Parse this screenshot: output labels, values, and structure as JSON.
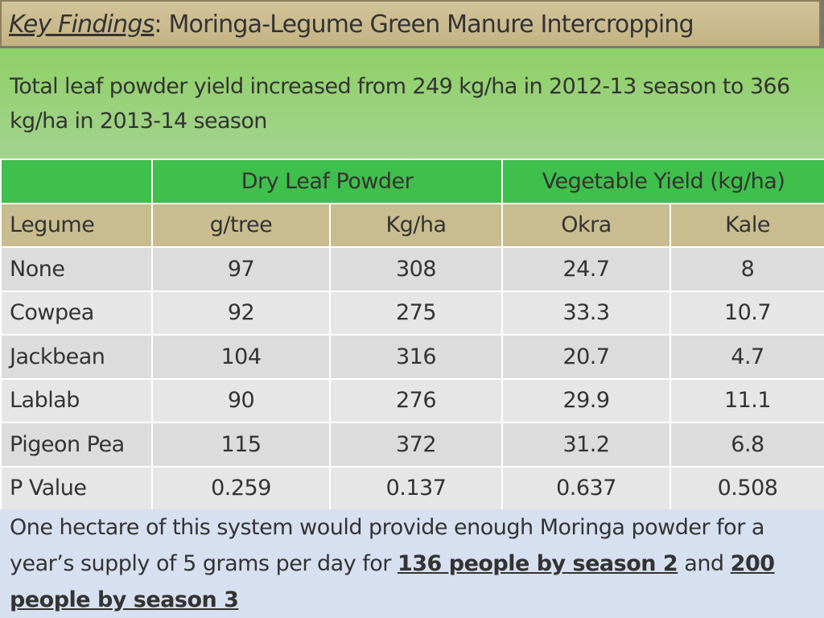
{
  "title": {
    "emphasis": "Key Findings",
    "rest": ": Moringa-Legume Green Manure Intercropping"
  },
  "summary": "Total leaf powder yield increased from 249 kg/ha in 2012-13 season to 366 kg/ha in 2013-14 season",
  "table": {
    "group_headers": [
      "Dry Leaf Powder",
      "Vegetable Yield (kg/ha)"
    ],
    "headers": [
      "Legume",
      "g/tree",
      "Kg/ha",
      "Okra",
      "Kale"
    ],
    "rows": [
      [
        "None",
        "97",
        "308",
        "24.7",
        "8"
      ],
      [
        "Cowpea",
        "92",
        "275",
        "33.3",
        "10.7"
      ],
      [
        "Jackbean",
        "104",
        "316",
        "20.7",
        "4.7"
      ],
      [
        "Lablab",
        "90",
        "276",
        "29.9",
        "11.1"
      ],
      [
        "Pigeon Pea",
        "115",
        "372",
        "31.2",
        "6.8"
      ],
      [
        "P Value",
        "0.259",
        "0.137",
        "0.637",
        "0.508"
      ]
    ]
  },
  "conclusion": {
    "text1": "One hectare of this system would provide enough Moringa powder for a year’s supply of 5 grams per day for ",
    "highlight1": "136 people by season 2",
    "text2": " and ",
    "highlight2": "200 people by season 3"
  }
}
